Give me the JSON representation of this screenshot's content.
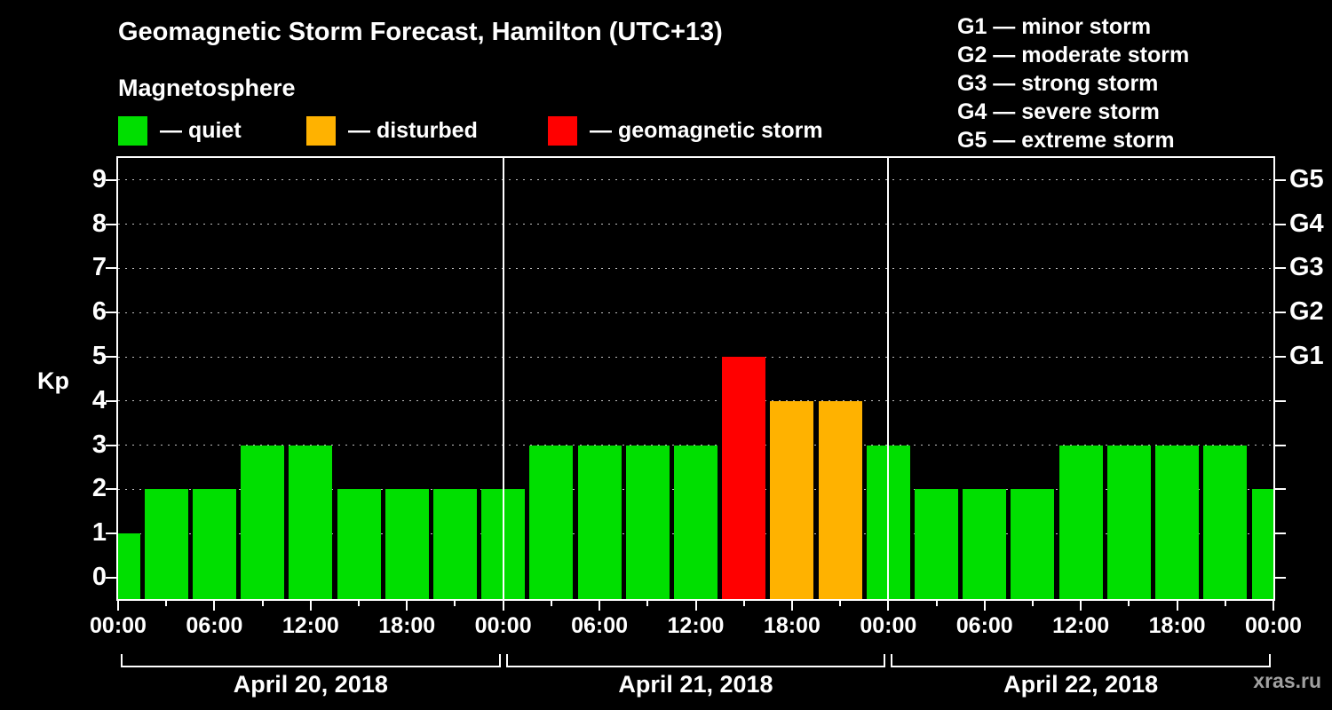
{
  "title": "Geomagnetic Storm Forecast, Hamilton (UTC+13)",
  "subtitle": "Magnetosphere",
  "kp_axis_label": "Kp",
  "watermark": "xras.ru",
  "legend": {
    "items": [
      {
        "key": "quiet",
        "label": "— quiet",
        "color": "#00df00"
      },
      {
        "key": "disturbed",
        "label": "— disturbed",
        "color": "#ffb200"
      },
      {
        "key": "storm",
        "label": "— geomagnetic storm",
        "color": "#ff0000"
      }
    ]
  },
  "g_legend": {
    "lines": [
      "G1 — minor storm",
      "G2 — moderate storm",
      "G3 — strong storm",
      "G4 — severe storm",
      "G5 — extreme storm"
    ]
  },
  "chart_data": {
    "type": "bar",
    "title": "Geomagnetic Storm Forecast, Hamilton (UTC+13)",
    "ylabel": "Kp",
    "ylim": [
      0,
      9.5
    ],
    "yticks": [
      0,
      1,
      2,
      3,
      4,
      5,
      6,
      7,
      8,
      9
    ],
    "gridline_kps": [
      1,
      2,
      3,
      4,
      5,
      6,
      7,
      8,
      9
    ],
    "right_axis": [
      {
        "kp": 5,
        "label": "G1"
      },
      {
        "kp": 6,
        "label": "G2"
      },
      {
        "kp": 7,
        "label": "G3"
      },
      {
        "kp": 8,
        "label": "G4"
      },
      {
        "kp": 9,
        "label": "G5"
      }
    ],
    "status_colors": {
      "quiet": "#00df00",
      "disturbed": "#ffb200",
      "storm": "#ff0000"
    },
    "x_axis": {
      "hours_span": [
        0,
        72
      ],
      "major_tick_hours": 6,
      "minor_tick_hours": 3,
      "tick_labels": [
        "00:00",
        "06:00",
        "12:00",
        "18:00",
        "00:00",
        "06:00",
        "12:00",
        "18:00",
        "00:00",
        "06:00",
        "12:00",
        "18:00",
        "00:00"
      ]
    },
    "days": [
      {
        "label": "April 20, 2018",
        "start_hour": 0,
        "end_hour": 24
      },
      {
        "label": "April 21, 2018",
        "start_hour": 24,
        "end_hour": 48
      },
      {
        "label": "April 22, 2018",
        "start_hour": 48,
        "end_hour": 72
      }
    ],
    "bars": [
      {
        "hour": 0,
        "kp": 1,
        "status": "quiet"
      },
      {
        "hour": 3,
        "kp": 2,
        "status": "quiet"
      },
      {
        "hour": 6,
        "kp": 2,
        "status": "quiet"
      },
      {
        "hour": 9,
        "kp": 3,
        "status": "quiet"
      },
      {
        "hour": 12,
        "kp": 3,
        "status": "quiet"
      },
      {
        "hour": 15,
        "kp": 2,
        "status": "quiet"
      },
      {
        "hour": 18,
        "kp": 2,
        "status": "quiet"
      },
      {
        "hour": 21,
        "kp": 2,
        "status": "quiet"
      },
      {
        "hour": 24,
        "kp": 2,
        "status": "quiet"
      },
      {
        "hour": 27,
        "kp": 3,
        "status": "quiet"
      },
      {
        "hour": 30,
        "kp": 3,
        "status": "quiet"
      },
      {
        "hour": 33,
        "kp": 3,
        "status": "quiet"
      },
      {
        "hour": 36,
        "kp": 3,
        "status": "quiet"
      },
      {
        "hour": 39,
        "kp": 5,
        "status": "storm"
      },
      {
        "hour": 42,
        "kp": 4,
        "status": "disturbed"
      },
      {
        "hour": 45,
        "kp": 4,
        "status": "disturbed"
      },
      {
        "hour": 48,
        "kp": 3,
        "status": "quiet"
      },
      {
        "hour": 51,
        "kp": 2,
        "status": "quiet"
      },
      {
        "hour": 54,
        "kp": 2,
        "status": "quiet"
      },
      {
        "hour": 57,
        "kp": 2,
        "status": "quiet"
      },
      {
        "hour": 60,
        "kp": 3,
        "status": "quiet"
      },
      {
        "hour": 63,
        "kp": 3,
        "status": "quiet"
      },
      {
        "hour": 66,
        "kp": 3,
        "status": "quiet"
      },
      {
        "hour": 69,
        "kp": 3,
        "status": "quiet"
      },
      {
        "hour": 72,
        "kp": 2,
        "status": "quiet"
      }
    ]
  }
}
